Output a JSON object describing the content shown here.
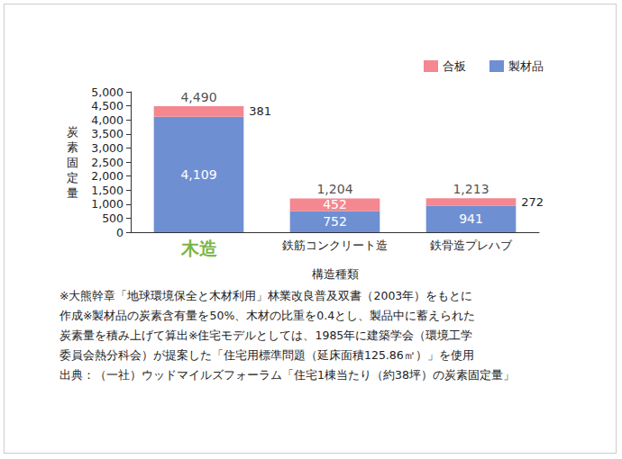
{
  "chart_data": {
    "type": "bar",
    "stacked": true,
    "data_labels": true,
    "grid": false,
    "legend": "top-right",
    "x_label": "構造種類",
    "y_label": "炭素固定量",
    "categories": [
      "木造",
      "鉄筋コンクリート造",
      "鉄骨造プレハブ"
    ],
    "series": [
      {
        "name": "製材品",
        "color": "#6f8fd3",
        "values": [
          4109,
          752,
          941
        ],
        "value_labels": [
          "4,109",
          "752",
          "941"
        ]
      },
      {
        "name": "合板",
        "color": "#f4878f",
        "values": [
          381,
          452,
          272
        ]
      }
    ],
    "totals": [
      4490,
      1204,
      1213
    ],
    "total_labels": [
      "4,490",
      "1,204",
      "1,213"
    ],
    "ylim": [
      0,
      5000
    ],
    "yticks": [
      0,
      500,
      {
        "value": 1000,
        "label": "1,000"
      },
      {
        "value": 1500,
        "label": "1,500"
      },
      {
        "value": 2000,
        "label": "2,000"
      },
      {
        "value": 2500,
        "label": "2,500"
      },
      {
        "value": 3000,
        "label": "3,000"
      },
      {
        "value": 3500,
        "label": "3,500"
      },
      {
        "value": 4000,
        "label": "4,000"
      },
      {
        "value": 4500,
        "label": "4,500"
      },
      {
        "value": 5000,
        "label": "5,000"
      }
    ],
    "notes": [
      "※大熊幹章「地球環境保全と木材利用」林業改良普及双書（2003年）をもとに",
      "作成※製材品の炭素含有量を50%、木材の比重を0.4とし、製品中に蓄えられた",
      "炭素量を積み上げて算出※住宅モデルとしては、1985年に建築学会（環境工学",
      "委員会熱分科会）が提案した「住宅用標準問題（延床面積125.86㎡）」を使用",
      "出典：（一社）ウッドマイルズフォーラム「住宅1棟当たり（約38坪）の炭素固定量」"
    ]
  }
}
